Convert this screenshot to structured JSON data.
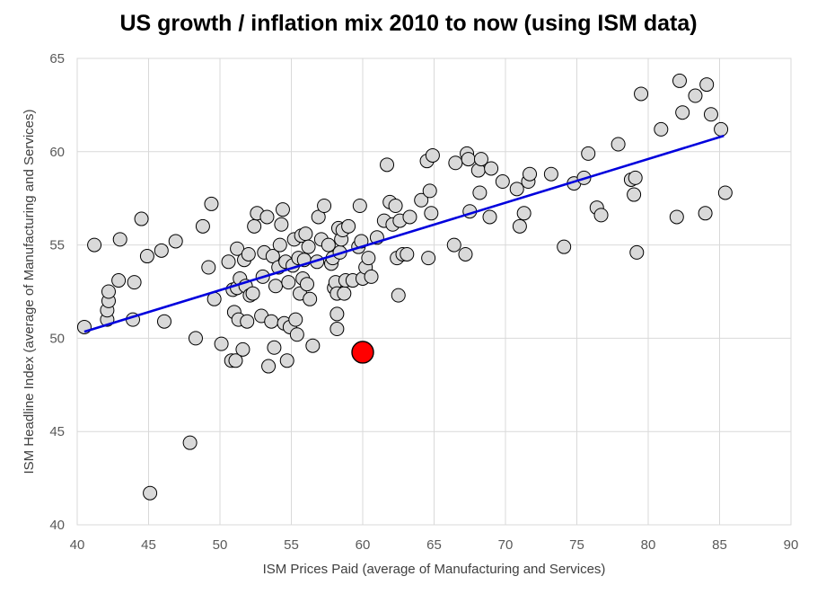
{
  "chart_data": {
    "type": "scatter",
    "title": "US growth / inflation mix 2010 to now (using ISM data)",
    "xlabel": "ISM Prices Paid (average of Manufacturing and Services)",
    "ylabel": "ISM Headline Index (average of Manufacturing and Services)",
    "xlim": [
      40,
      90
    ],
    "ylim": [
      40,
      65
    ],
    "xticks": [
      40,
      45,
      50,
      55,
      60,
      65,
      70,
      75,
      80,
      85,
      90
    ],
    "yticks": [
      40,
      45,
      50,
      55,
      60,
      65
    ],
    "grid": true,
    "point_color": "#d9d9d9",
    "highlight_color": "#ff0000",
    "trendline_color": "#0000dd",
    "trendline": {
      "x": [
        40.5,
        85.3
      ],
      "y": [
        50.35,
        60.85
      ]
    },
    "highlight": {
      "x": 60.0,
      "y": 49.25
    },
    "points": [
      [
        40.5,
        50.6
      ],
      [
        41.2,
        55.0
      ],
      [
        42.1,
        51.0
      ],
      [
        42.1,
        51.5
      ],
      [
        42.2,
        52.0
      ],
      [
        42.2,
        52.5
      ],
      [
        42.9,
        53.1
      ],
      [
        43.0,
        55.3
      ],
      [
        43.9,
        51.0
      ],
      [
        44.0,
        53.0
      ],
      [
        44.5,
        56.4
      ],
      [
        44.9,
        54.4
      ],
      [
        45.1,
        41.7
      ],
      [
        45.9,
        54.7
      ],
      [
        46.1,
        50.9
      ],
      [
        46.9,
        55.2
      ],
      [
        47.9,
        44.4
      ],
      [
        48.3,
        50.0
      ],
      [
        48.8,
        56.0
      ],
      [
        49.2,
        53.8
      ],
      [
        49.4,
        57.2
      ],
      [
        49.6,
        52.1
      ],
      [
        50.1,
        49.7
      ],
      [
        50.6,
        54.1
      ],
      [
        50.8,
        48.8
      ],
      [
        50.9,
        52.6
      ],
      [
        51.0,
        51.4
      ],
      [
        51.1,
        48.8
      ],
      [
        51.2,
        52.7
      ],
      [
        51.2,
        54.8
      ],
      [
        51.3,
        51.0
      ],
      [
        51.4,
        53.2
      ],
      [
        51.6,
        49.4
      ],
      [
        51.7,
        54.2
      ],
      [
        51.8,
        52.8
      ],
      [
        51.9,
        50.9
      ],
      [
        52.0,
        54.5
      ],
      [
        52.1,
        52.3
      ],
      [
        52.3,
        52.4
      ],
      [
        52.4,
        56.0
      ],
      [
        52.6,
        56.7
      ],
      [
        52.9,
        51.2
      ],
      [
        53.0,
        53.3
      ],
      [
        53.1,
        54.6
      ],
      [
        53.3,
        56.5
      ],
      [
        53.4,
        48.5
      ],
      [
        53.6,
        50.9
      ],
      [
        53.7,
        54.4
      ],
      [
        53.8,
        49.5
      ],
      [
        53.9,
        52.8
      ],
      [
        54.1,
        53.8
      ],
      [
        54.2,
        55.0
      ],
      [
        54.3,
        56.1
      ],
      [
        54.4,
        56.9
      ],
      [
        54.5,
        50.8
      ],
      [
        54.6,
        54.1
      ],
      [
        54.7,
        48.8
      ],
      [
        54.8,
        53.0
      ],
      [
        54.9,
        50.6
      ],
      [
        55.1,
        53.9
      ],
      [
        55.2,
        55.3
      ],
      [
        55.3,
        51.0
      ],
      [
        55.4,
        50.2
      ],
      [
        55.5,
        54.3
      ],
      [
        55.6,
        52.4
      ],
      [
        55.7,
        55.5
      ],
      [
        55.8,
        53.2
      ],
      [
        55.9,
        54.2
      ],
      [
        56.0,
        55.6
      ],
      [
        56.1,
        52.9
      ],
      [
        56.2,
        54.9
      ],
      [
        56.3,
        52.1
      ],
      [
        56.5,
        49.6
      ],
      [
        56.8,
        54.1
      ],
      [
        56.9,
        56.5
      ],
      [
        57.1,
        55.3
      ],
      [
        57.3,
        57.1
      ],
      [
        57.6,
        55.0
      ],
      [
        57.8,
        54.0
      ],
      [
        57.9,
        54.3
      ],
      [
        58.0,
        52.7
      ],
      [
        58.1,
        53.0
      ],
      [
        58.2,
        51.3
      ],
      [
        58.2,
        52.4
      ],
      [
        58.2,
        50.5
      ],
      [
        58.3,
        55.9
      ],
      [
        58.4,
        54.6
      ],
      [
        58.5,
        55.3
      ],
      [
        58.6,
        55.8
      ],
      [
        58.7,
        52.4
      ],
      [
        58.8,
        53.1
      ],
      [
        59.0,
        56.0
      ],
      [
        59.3,
        53.1
      ],
      [
        59.7,
        54.9
      ],
      [
        59.8,
        57.1
      ],
      [
        59.9,
        55.2
      ],
      [
        60.0,
        53.2
      ],
      [
        60.2,
        53.8
      ],
      [
        60.4,
        54.3
      ],
      [
        60.6,
        53.3
      ],
      [
        61.0,
        55.4
      ],
      [
        61.5,
        56.3
      ],
      [
        61.7,
        59.3
      ],
      [
        61.9,
        57.3
      ],
      [
        62.1,
        56.1
      ],
      [
        62.3,
        57.1
      ],
      [
        62.4,
        54.3
      ],
      [
        62.5,
        52.3
      ],
      [
        62.6,
        56.3
      ],
      [
        62.8,
        54.5
      ],
      [
        63.1,
        54.5
      ],
      [
        63.3,
        56.5
      ],
      [
        64.1,
        57.4
      ],
      [
        64.5,
        59.5
      ],
      [
        64.6,
        54.3
      ],
      [
        64.7,
        57.9
      ],
      [
        64.8,
        56.7
      ],
      [
        64.9,
        59.8
      ],
      [
        66.4,
        55.0
      ],
      [
        66.5,
        59.4
      ],
      [
        67.2,
        54.5
      ],
      [
        67.3,
        59.9
      ],
      [
        67.4,
        59.6
      ],
      [
        67.5,
        56.8
      ],
      [
        68.1,
        59.0
      ],
      [
        68.2,
        57.8
      ],
      [
        68.3,
        59.6
      ],
      [
        68.9,
        56.5
      ],
      [
        69.0,
        59.1
      ],
      [
        69.8,
        58.4
      ],
      [
        70.8,
        58.0
      ],
      [
        71.0,
        56.0
      ],
      [
        71.3,
        56.7
      ],
      [
        71.6,
        58.4
      ],
      [
        71.7,
        58.8
      ],
      [
        73.2,
        58.8
      ],
      [
        74.1,
        54.9
      ],
      [
        74.8,
        58.3
      ],
      [
        75.5,
        58.6
      ],
      [
        75.8,
        59.9
      ],
      [
        76.4,
        57.0
      ],
      [
        76.7,
        56.6
      ],
      [
        77.9,
        60.4
      ],
      [
        78.8,
        58.5
      ],
      [
        79.0,
        57.7
      ],
      [
        79.1,
        58.6
      ],
      [
        79.2,
        54.6
      ],
      [
        79.5,
        63.1
      ],
      [
        80.9,
        61.2
      ],
      [
        82.0,
        56.5
      ],
      [
        82.2,
        63.8
      ],
      [
        82.4,
        62.1
      ],
      [
        83.3,
        63.0
      ],
      [
        84.0,
        56.7
      ],
      [
        84.1,
        63.6
      ],
      [
        84.4,
        62.0
      ],
      [
        85.1,
        61.2
      ],
      [
        85.4,
        57.8
      ]
    ]
  }
}
